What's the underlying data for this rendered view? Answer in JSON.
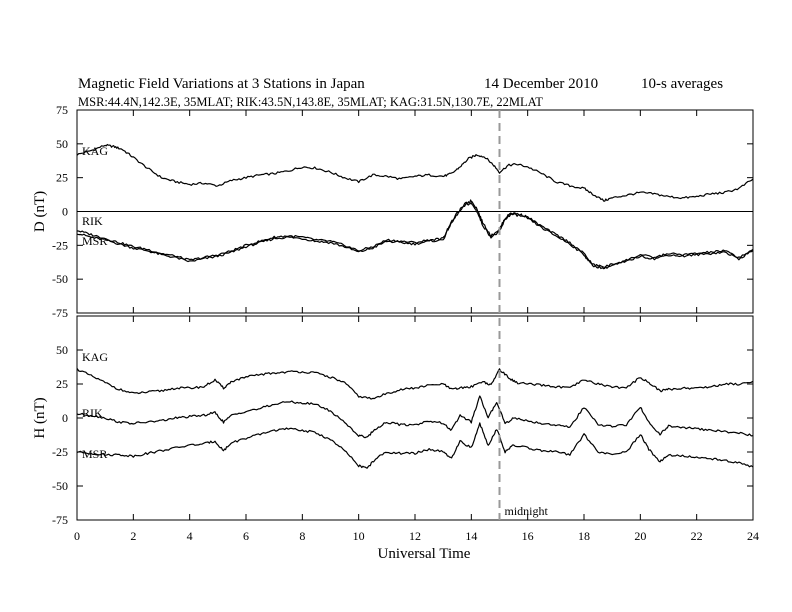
{
  "title": {
    "main": "Magnetic Field Variations at 3 Stations in Japan",
    "date": "14 December 2010",
    "averaging": "10-s averages",
    "stations": "MSR:44.4N,142.3E, 35MLAT;  RIK:43.5N,143.8E, 35MLAT;  KAG:31.5N,130.7E, 22MLAT"
  },
  "chart_data": {
    "type": "line",
    "xlabel": "Universal Time",
    "xlim": [
      0,
      24
    ],
    "xticks": [
      0,
      2,
      4,
      6,
      8,
      10,
      12,
      14,
      16,
      18,
      20,
      22,
      24
    ],
    "marker": {
      "x": 15,
      "label": "midnight",
      "style": "dashed"
    },
    "grid": false,
    "panels": [
      {
        "id": "D",
        "ylabel": "D (nT)",
        "ylim": [
          -75,
          75
        ],
        "yticks": [
          75,
          50,
          25,
          0,
          -25,
          -50,
          -75
        ],
        "zero_line": true,
        "series": [
          {
            "name": "KAG",
            "x": [
              0,
              0.5,
              1,
              1.3,
              1.6,
              2,
              2.5,
              3,
              3.5,
              4,
              4.5,
              5,
              5.5,
              6,
              6.5,
              7,
              7.5,
              8,
              8.5,
              9,
              9.5,
              10,
              10.5,
              11,
              11.5,
              12,
              12.5,
              13,
              13.3,
              13.6,
              13.9,
              14.2,
              14.5,
              14.8,
              15,
              15.3,
              15.6,
              16,
              16.5,
              17,
              17.5,
              18,
              18.3,
              18.7,
              19,
              19.5,
              20,
              20.5,
              21,
              21.5,
              22,
              22.5,
              23,
              23.5,
              24
            ],
            "y": [
              42,
              45,
              49,
              48,
              46,
              40,
              32,
              25,
              22,
              20,
              21,
              19,
              23,
              25,
              27,
              28,
              30,
              33,
              32,
              29,
              25,
              22,
              27,
              26,
              24,
              26,
              27,
              26,
              28,
              33,
              39,
              42,
              40,
              34,
              29,
              34,
              35,
              33,
              28,
              22,
              19,
              17,
              13,
              8,
              10,
              12,
              14,
              13,
              11,
              10,
              11,
              13,
              14,
              17,
              24
            ]
          },
          {
            "name": "RIK",
            "x": [
              0,
              0.5,
              1,
              1.5,
              2,
              2.5,
              3,
              3.5,
              4,
              4.5,
              5,
              5.5,
              6,
              6.5,
              7,
              7.5,
              8,
              8.5,
              9,
              9.5,
              10,
              10.5,
              11,
              11.5,
              12,
              12.5,
              13,
              13.2,
              13.5,
              13.8,
              14,
              14.2,
              14.4,
              14.7,
              15,
              15.2,
              15.4,
              15.7,
              16,
              16.5,
              17,
              17.5,
              18,
              18.3,
              18.7,
              19,
              19.5,
              20,
              20.5,
              21,
              21.5,
              22,
              22.5,
              23,
              23.5,
              24
            ],
            "y": [
              -16,
              -19,
              -21,
              -24,
              -27,
              -29,
              -32,
              -34,
              -37,
              -35,
              -33,
              -30,
              -26,
              -23,
              -20,
              -19,
              -20,
              -22,
              -23,
              -26,
              -30,
              -27,
              -22,
              -23,
              -24,
              -22,
              -21,
              -12,
              -2,
              5,
              6,
              0,
              -10,
              -19,
              -15,
              -6,
              -2,
              -3,
              -5,
              -12,
              -18,
              -24,
              -32,
              -40,
              -42,
              -40,
              -37,
              -33,
              -35,
              -32,
              -33,
              -32,
              -31,
              -30,
              -35,
              -29
            ]
          },
          {
            "name": "MSR",
            "x": [
              0,
              0.5,
              1,
              1.5,
              2,
              2.5,
              3,
              3.5,
              4,
              4.5,
              5,
              5.5,
              6,
              6.5,
              7,
              7.5,
              8,
              8.5,
              9,
              9.5,
              10,
              10.5,
              11,
              11.5,
              12,
              12.5,
              13,
              13.2,
              13.5,
              13.8,
              14,
              14.2,
              14.4,
              14.7,
              15,
              15.2,
              15.4,
              15.7,
              16,
              16.5,
              17,
              17.5,
              18,
              18.3,
              18.7,
              19,
              19.5,
              20,
              20.5,
              21,
              21.5,
              22,
              22.5,
              23,
              23.5,
              24
            ],
            "y": [
              -14,
              -17,
              -20,
              -23,
              -26,
              -28,
              -31,
              -33,
              -36,
              -34,
              -32,
              -29,
              -25,
              -22,
              -19,
              -18,
              -19,
              -21,
              -22,
              -25,
              -29,
              -26,
              -21,
              -22,
              -23,
              -21,
              -20,
              -11,
              -1,
              6,
              8,
              2,
              -8,
              -18,
              -13,
              -5,
              -1,
              -2,
              -4,
              -11,
              -17,
              -23,
              -31,
              -39,
              -41,
              -39,
              -36,
              -32,
              -34,
              -31,
              -32,
              -31,
              -30,
              -29,
              -34,
              -28
            ]
          }
        ],
        "labels": [
          {
            "text": "KAG",
            "series": "KAG"
          },
          {
            "text": "RIK",
            "series": "RIK"
          },
          {
            "text": "MSR",
            "series": "MSR"
          }
        ]
      },
      {
        "id": "H",
        "ylabel": "H (nT)",
        "ylim": [
          -75,
          75
        ],
        "yticks": [
          50,
          25,
          0,
          -25,
          -50,
          -75
        ],
        "zero_line": false,
        "series": [
          {
            "name": "KAG",
            "x": [
              0,
              0.5,
              1,
              1.5,
              2,
              2.5,
              3,
              3.5,
              4,
              4.5,
              4.9,
              5.2,
              5.5,
              6,
              6.5,
              7,
              7.5,
              8,
              8.5,
              9,
              9.5,
              10,
              10.5,
              11,
              11.5,
              12,
              12.5,
              13,
              13.3,
              13.6,
              14,
              14.4,
              14.7,
              15,
              15.3,
              15.6,
              16,
              16.5,
              17,
              17.5,
              18,
              18.5,
              19,
              19.5,
              20,
              20.3,
              20.7,
              21,
              21.5,
              22,
              22.5,
              23,
              23.5,
              24
            ],
            "y": [
              36,
              31,
              26,
              21,
              18,
              19,
              20,
              22,
              22,
              23,
              28,
              22,
              27,
              30,
              32,
              33,
              34,
              34,
              33,
              30,
              26,
              16,
              14,
              18,
              21,
              22,
              24,
              25,
              21,
              22,
              23,
              27,
              24,
              36,
              30,
              26,
              25,
              24,
              23,
              22,
              28,
              25,
              23,
              22,
              30,
              26,
              20,
              21,
              22,
              22,
              23,
              25,
              25,
              27
            ]
          },
          {
            "name": "RIK",
            "x": [
              0,
              0.5,
              1,
              1.5,
              2,
              2.5,
              3,
              3.5,
              4,
              4.5,
              4.9,
              5.2,
              5.5,
              6,
              6.5,
              7,
              7.5,
              8,
              8.5,
              9,
              9.5,
              10,
              10.3,
              10.6,
              11,
              11.5,
              12,
              12.5,
              13,
              13.3,
              13.6,
              14,
              14.3,
              14.6,
              14.9,
              15.2,
              15.5,
              16,
              16.5,
              17,
              17.5,
              18,
              18.5,
              19,
              19.5,
              20,
              20.3,
              20.7,
              21,
              21.5,
              22,
              22.5,
              23,
              23.5,
              24
            ],
            "y": [
              3,
              2,
              0,
              -3,
              -4,
              -3,
              -2,
              0,
              1,
              2,
              4,
              -3,
              2,
              5,
              7,
              10,
              12,
              11,
              10,
              5,
              -3,
              -13,
              -14,
              -8,
              -3,
              -5,
              -5,
              -2,
              -4,
              -9,
              2,
              -3,
              16,
              0,
              12,
              -4,
              0,
              -2,
              -4,
              -5,
              -7,
              8,
              -5,
              -6,
              -5,
              8,
              -3,
              -12,
              -6,
              -7,
              -8,
              -9,
              -10,
              -11,
              -13
            ]
          },
          {
            "name": "MSR",
            "x": [
              0,
              0.5,
              1,
              1.5,
              2,
              2.5,
              3,
              3.5,
              4,
              4.5,
              4.9,
              5.2,
              5.5,
              6,
              6.5,
              7,
              7.5,
              8,
              8.5,
              9,
              9.5,
              10,
              10.3,
              10.6,
              11,
              11.5,
              12,
              12.5,
              13,
              13.3,
              13.6,
              14,
              14.3,
              14.6,
              14.9,
              15.2,
              15.5,
              16,
              16.5,
              17,
              17.5,
              18,
              18.5,
              19,
              19.5,
              20,
              20.3,
              20.7,
              21,
              21.5,
              22,
              22.5,
              23,
              23.5,
              24
            ],
            "y": [
              -25,
              -26,
              -27,
              -27,
              -28,
              -26,
              -24,
              -22,
              -20,
              -19,
              -17,
              -24,
              -18,
              -15,
              -12,
              -9,
              -8,
              -9,
              -11,
              -16,
              -24,
              -35,
              -37,
              -30,
              -25,
              -26,
              -26,
              -23,
              -25,
              -30,
              -17,
              -22,
              -4,
              -20,
              -8,
              -25,
              -20,
              -22,
              -24,
              -25,
              -27,
              -12,
              -25,
              -27,
              -25,
              -12,
              -23,
              -32,
              -27,
              -28,
              -29,
              -30,
              -31,
              -33,
              -36
            ]
          }
        ],
        "labels": [
          {
            "text": "KAG",
            "series": "KAG"
          },
          {
            "text": "RIK",
            "series": "RIK"
          },
          {
            "text": "MSR",
            "series": "MSR"
          }
        ]
      }
    ]
  }
}
